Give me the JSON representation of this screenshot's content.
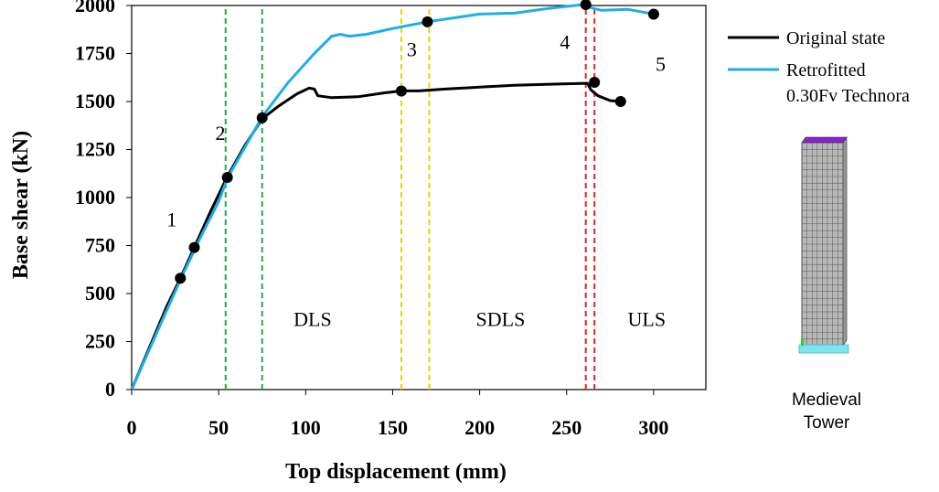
{
  "chart_data": {
    "type": "line",
    "title": "",
    "xlabel": "Top displacement (mm)",
    "ylabel": "Base shear (kN)",
    "xlim": [
      0,
      330
    ],
    "ylim": [
      0,
      2000
    ],
    "x_ticks": [
      "0",
      "50",
      "100",
      "150",
      "200",
      "250",
      "300"
    ],
    "y_ticks": [
      "0",
      "250",
      "500",
      "750",
      "1000",
      "1250",
      "1500",
      "1750",
      "2000"
    ],
    "grid": false,
    "legend_position": "right",
    "series": [
      {
        "name": "Original state",
        "color": "#000000",
        "points": [
          [
            0,
            0
          ],
          [
            20,
            430
          ],
          [
            28,
            580
          ],
          [
            36,
            740
          ],
          [
            45,
            920
          ],
          [
            55,
            1110
          ],
          [
            65,
            1270
          ],
          [
            75,
            1410
          ],
          [
            85,
            1480
          ],
          [
            95,
            1540
          ],
          [
            102,
            1570
          ],
          [
            105,
            1565
          ],
          [
            107,
            1530
          ],
          [
            115,
            1520
          ],
          [
            130,
            1525
          ],
          [
            145,
            1545
          ],
          [
            155,
            1555
          ],
          [
            165,
            1555
          ],
          [
            180,
            1565
          ],
          [
            200,
            1575
          ],
          [
            220,
            1585
          ],
          [
            240,
            1590
          ],
          [
            262,
            1595
          ],
          [
            264,
            1560
          ],
          [
            268,
            1530
          ],
          [
            275,
            1505
          ],
          [
            281,
            1500
          ]
        ],
        "markers": [
          [
            28,
            580
          ],
          [
            36,
            740
          ],
          [
            55,
            1105
          ],
          [
            75,
            1415
          ],
          [
            155,
            1555
          ],
          [
            266,
            1600
          ],
          [
            281,
            1500
          ]
        ]
      },
      {
        "name": "Retrofitted 0.30Fv Technora",
        "color": "#1eaee6",
        "points": [
          [
            0,
            0
          ],
          [
            20,
            410
          ],
          [
            30,
            610
          ],
          [
            40,
            800
          ],
          [
            50,
            980
          ],
          [
            55,
            1100
          ],
          [
            65,
            1260
          ],
          [
            75,
            1420
          ],
          [
            90,
            1600
          ],
          [
            105,
            1750
          ],
          [
            115,
            1840
          ],
          [
            120,
            1850
          ],
          [
            125,
            1840
          ],
          [
            135,
            1850
          ],
          [
            150,
            1880
          ],
          [
            170,
            1915
          ],
          [
            200,
            1955
          ],
          [
            220,
            1960
          ],
          [
            240,
            1985
          ],
          [
            260,
            2005
          ],
          [
            265,
            1985
          ],
          [
            270,
            1975
          ],
          [
            285,
            1980
          ],
          [
            300,
            1955
          ]
        ],
        "markers": [
          [
            170,
            1915
          ],
          [
            261,
            2005
          ],
          [
            300,
            1955
          ]
        ]
      }
    ],
    "vlines": [
      {
        "x": 54,
        "color": "#22aa44"
      },
      {
        "x": 75,
        "color": "#22aa44"
      },
      {
        "x": 155,
        "color": "#e8d400"
      },
      {
        "x": 171,
        "color": "#e8d400"
      },
      {
        "x": 261,
        "color": "#e62020"
      },
      {
        "x": 266,
        "color": "#e62020"
      }
    ],
    "annotations": [
      {
        "text": "1",
        "x": 23,
        "y": 850
      },
      {
        "text": "2",
        "x": 51,
        "y": 1300
      },
      {
        "text": "3",
        "x": 161,
        "y": 1735
      },
      {
        "text": "4",
        "x": 249,
        "y": 1775
      },
      {
        "text": "5",
        "x": 304,
        "y": 1660
      },
      {
        "text": "DLS",
        "x": 104,
        "y": 330
      },
      {
        "text": "SDLS",
        "x": 212,
        "y": 330
      },
      {
        "text": "ULS",
        "x": 296,
        "y": 330
      }
    ]
  },
  "side_image": {
    "caption_line1": "Medieval",
    "caption_line2": "Tower"
  }
}
